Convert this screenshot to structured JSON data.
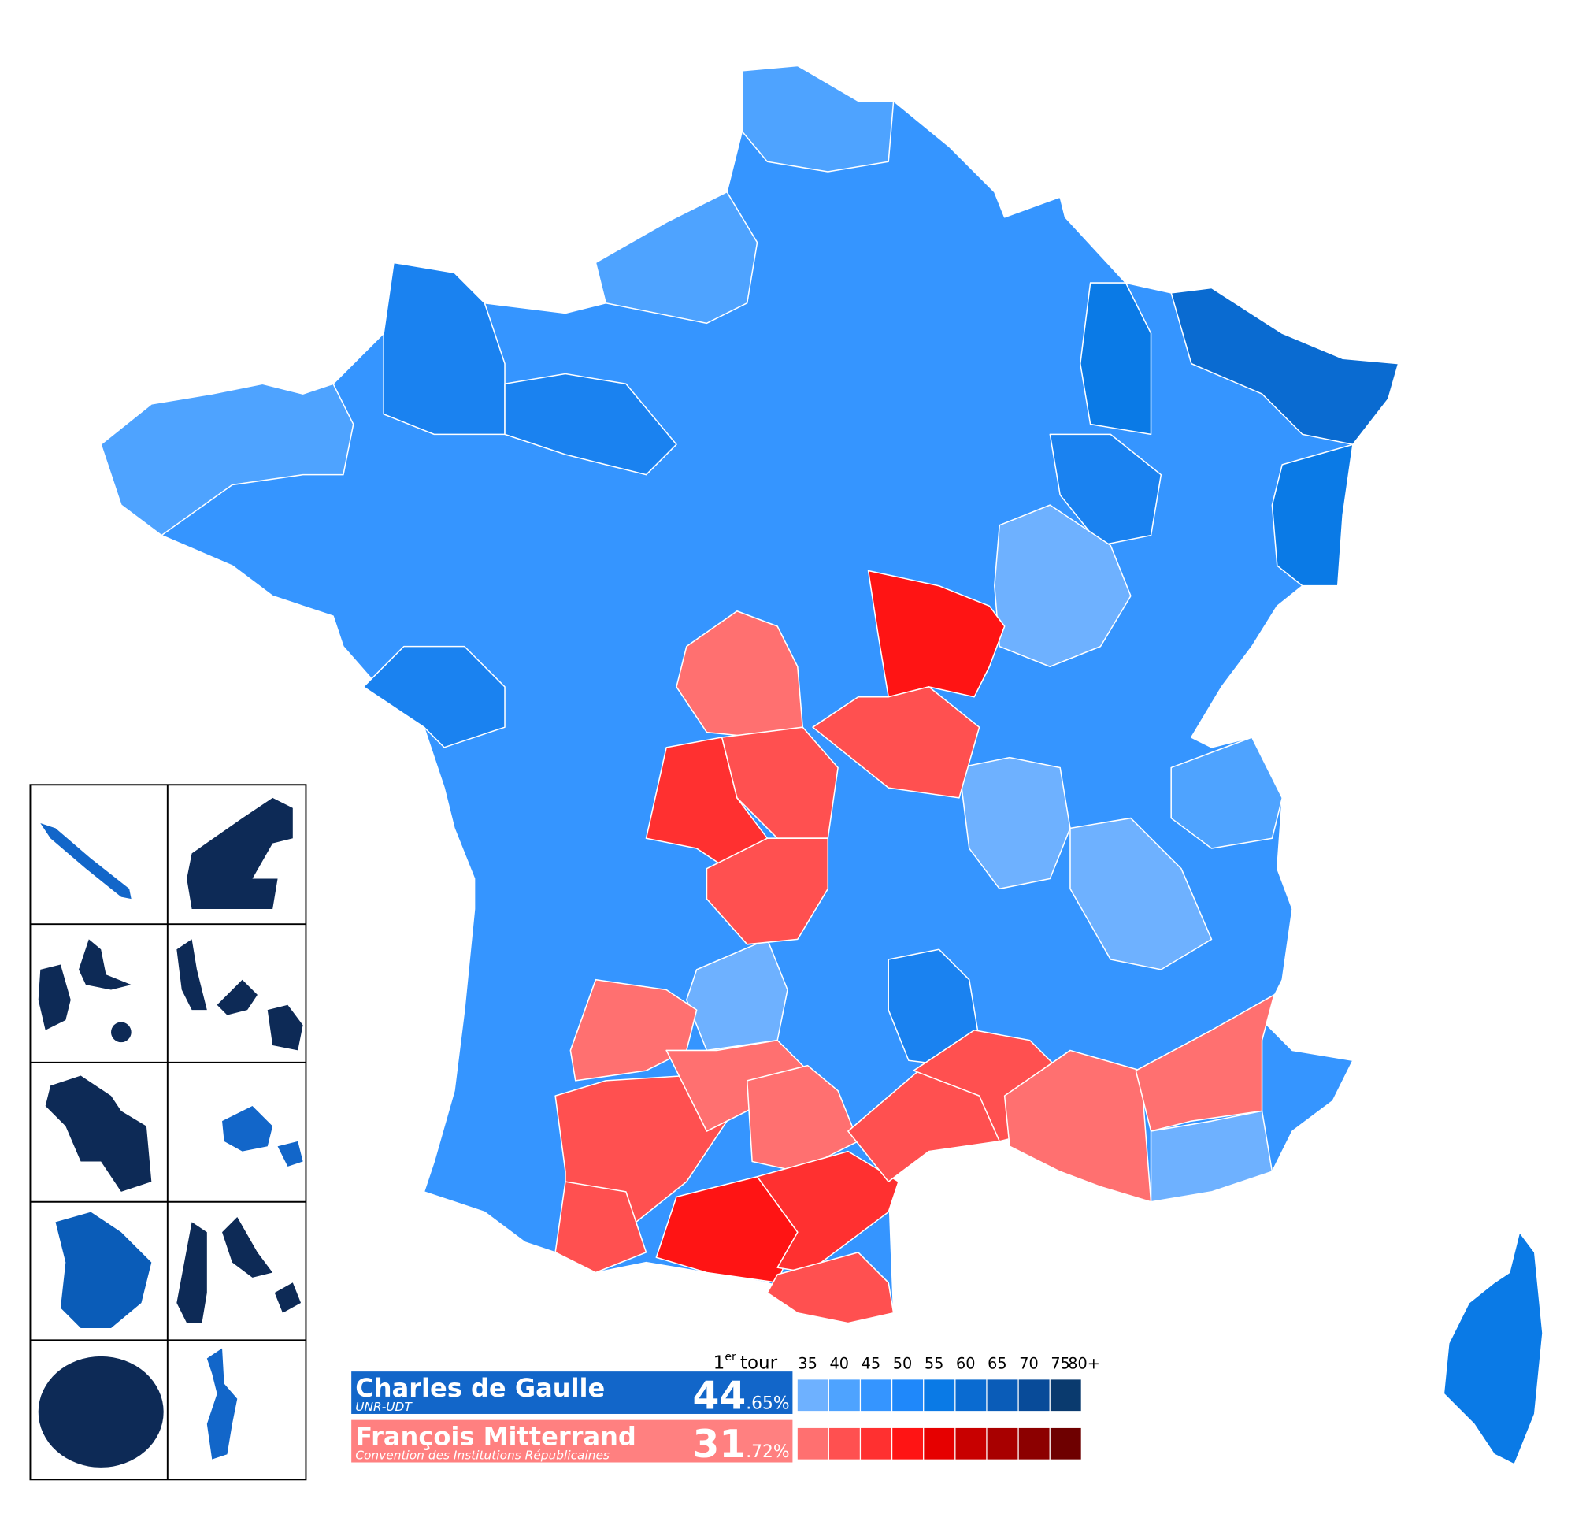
{
  "legend": {
    "round": {
      "number": "1",
      "suffix": "er",
      "word": "tour"
    },
    "scale": [
      "35",
      "40",
      "45",
      "50",
      "55",
      "60",
      "65",
      "70",
      "75",
      "80+"
    ],
    "candidates": [
      {
        "name": "Charles de Gaulle",
        "party": "UNR-UDT",
        "percent_int": "44",
        "percent_dec": ".65%",
        "color": "#1266c9",
        "scale_colors": [
          "#6eb1ff",
          "#4ea3ff",
          "#3595ff",
          "#1f88fa",
          "#0a7ae6",
          "#0a6bd1",
          "#0a5cb8",
          "#084b99",
          "#0a3a6e"
        ]
      },
      {
        "name": "François Mitterrand",
        "party": "Convention des Institutions Républicaines",
        "percent_int": "31",
        "percent_dec": ".72%",
        "color": "#ff8080",
        "scale_colors": [
          "#ff7070",
          "#ff5050",
          "#ff3030",
          "#ff1414",
          "#e60000",
          "#c80000",
          "#a80000",
          "#8c0000",
          "#6e0000"
        ]
      }
    ]
  }
}
